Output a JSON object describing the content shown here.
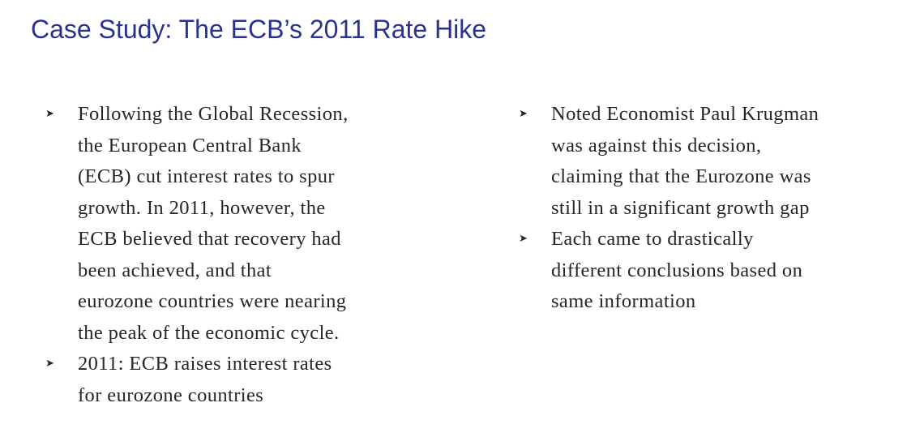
{
  "title": "Case Study: The ECB’s 2011 Rate Hike",
  "bullet_icon": "arrowhead-bullet-icon",
  "left_column": [
    {
      "lines": [
        "Following the Global Recession,",
        "the European Central Bank",
        "(ECB) cut interest rates to spur",
        "growth. In 2011, however, the",
        "ECB believed that recovery had",
        "been achieved, and that",
        "eurozone countries were nearing",
        "the peak of the economic cycle."
      ]
    },
    {
      "lines": [
        "2011: ECB raises interest rates",
        "for eurozone countries"
      ]
    }
  ],
  "right_column": [
    {
      "lines": [
        "Noted Economist Paul Krugman",
        "was against this decision,",
        "claiming that the Eurozone was",
        "still in a significant growth gap"
      ]
    },
    {
      "lines": [
        "Each came to drastically",
        "different conclusions based on",
        "same information"
      ]
    }
  ]
}
